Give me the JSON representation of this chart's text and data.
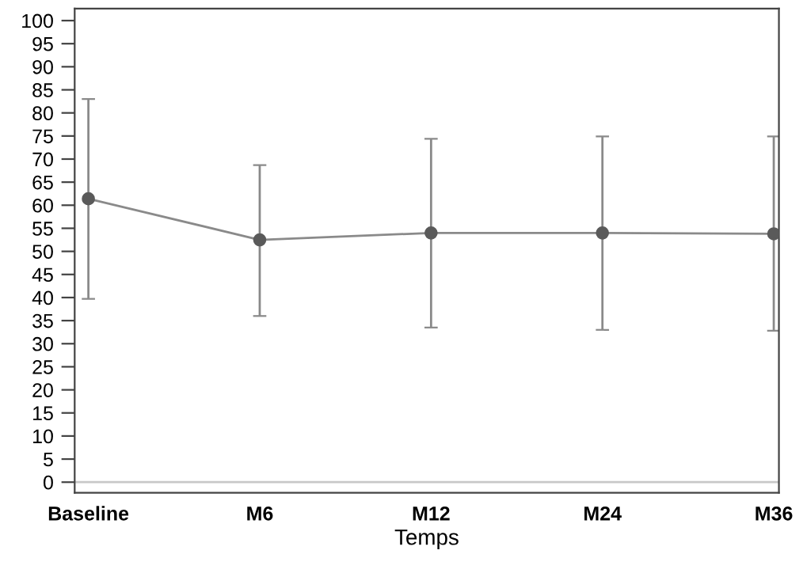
{
  "chart_data": {
    "type": "line",
    "xlabel": "Temps",
    "categories": [
      "Baseline",
      "M6",
      "M12",
      "M24",
      "M36"
    ],
    "series": [
      {
        "color": "#5a5a5a",
        "values": [
          61.4,
          52.5,
          54.0,
          54.0,
          53.8
        ],
        "errors": [
          [
            39.7,
            83.0
          ],
          [
            36.0,
            68.7
          ],
          [
            33.5,
            74.4
          ],
          [
            33.0,
            74.9
          ],
          [
            32.8,
            74.9
          ]
        ]
      }
    ],
    "ylim": [
      -2.3,
      102.6
    ],
    "yticks": [
      0,
      5,
      10,
      15,
      20,
      25,
      30,
      35,
      40,
      45,
      50,
      55,
      60,
      65,
      70,
      75,
      80,
      85,
      90,
      95,
      100
    ],
    "ref_lines": [
      {
        "axis": "y",
        "value": 0,
        "color": "#c8c8c8"
      }
    ],
    "marker": "circle",
    "line_style": "solid",
    "grid": false,
    "legend": false
  }
}
